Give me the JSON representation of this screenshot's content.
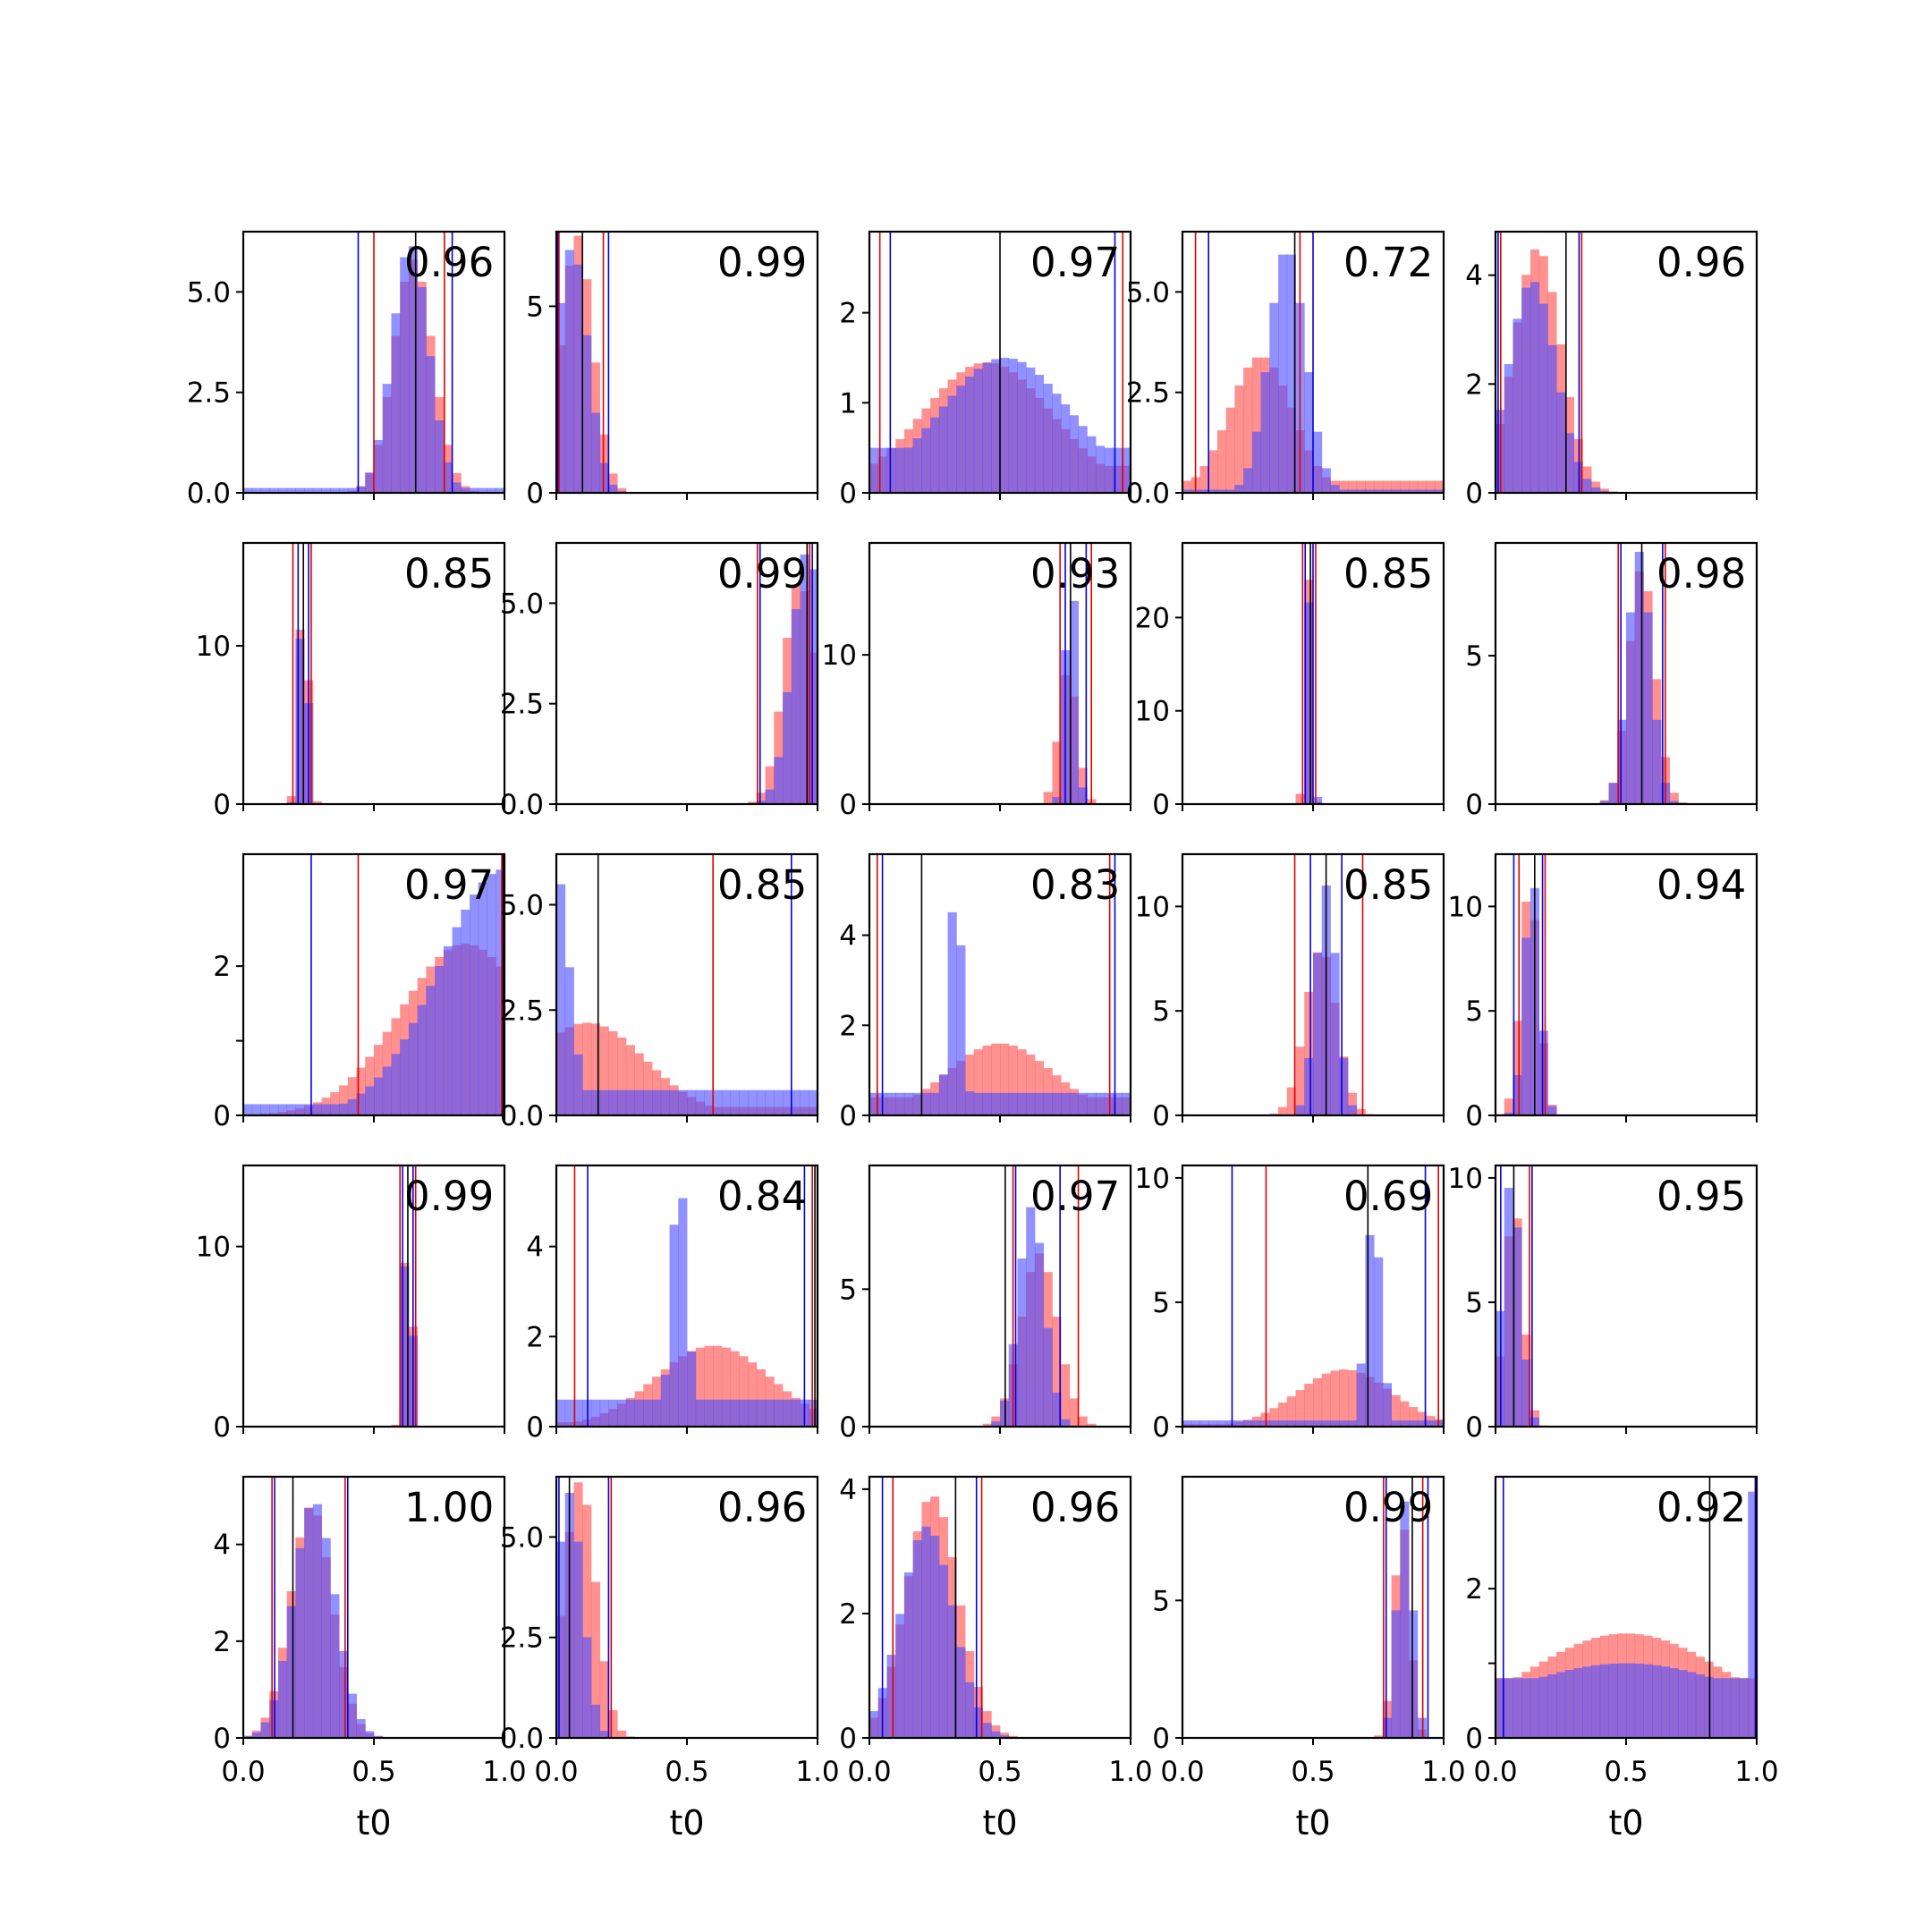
{
  "figure": {
    "grid_rows": 5,
    "grid_cols": 5,
    "xlabel": "t0",
    "colors": {
      "red": "#ff4d4d",
      "blue": "#4d4dff",
      "overlap": "#7f3fbf",
      "axis": "#000000"
    }
  },
  "chart_data": [
    {
      "type": "bar",
      "title": "0.96",
      "xlim": [
        0,
        1
      ],
      "ylim": [
        0,
        6.5
      ],
      "yticks": [
        0,
        2.5,
        5
      ],
      "ytick_labels": [
        "0.0",
        "2.5",
        "5.0"
      ],
      "xticks": [
        0,
        0.5,
        1
      ],
      "xtick_labels": [],
      "xlabel": "",
      "red": {
        "mean": 0.65,
        "sd": 0.075,
        "peak": 5.8
      },
      "blue": {
        "mean": 0.64,
        "sd": 0.07,
        "peak": 6.2,
        "floor": 0.12
      },
      "vlines": {
        "red": [
          0.5,
          0.77
        ],
        "blue": [
          0.44,
          0.8
        ],
        "black": [
          0.66
        ]
      }
    },
    {
      "type": "bar",
      "title": "0.99",
      "xlim": [
        0,
        1
      ],
      "ylim": [
        0,
        7
      ],
      "yticks": [
        0,
        5
      ],
      "ytick_labels": [
        "0",
        "5"
      ],
      "xticks": [
        0,
        0.5,
        1
      ],
      "xtick_labels": [],
      "xlabel": "",
      "red": {
        "mean": 0.08,
        "sd": 0.06,
        "peak": 6.9
      },
      "blue": {
        "mean": 0.06,
        "sd": 0.06,
        "peak": 6.6
      },
      "vlines": {
        "red": [
          0.01,
          0.18
        ],
        "blue": [
          0.005,
          0.2
        ],
        "black": [
          0.1
        ]
      }
    },
    {
      "type": "bar",
      "title": "0.97",
      "xlim": [
        0,
        1
      ],
      "ylim": [
        0,
        2.9
      ],
      "yticks": [
        0,
        1,
        2
      ],
      "ytick_labels": [
        "0",
        "1",
        "2"
      ],
      "xticks": [
        0,
        0.5,
        1
      ],
      "xtick_labels": [],
      "xlabel": "",
      "red": {
        "mean": 0.45,
        "sd": 0.25,
        "peak": 1.45,
        "floor": 0.3
      },
      "blue": {
        "mean": 0.52,
        "sd": 0.25,
        "peak": 1.5,
        "floor": 0.5
      },
      "vlines": {
        "red": [
          0.04,
          0.97
        ],
        "blue": [
          0.08,
          0.94
        ],
        "black": [
          0.5
        ]
      }
    },
    {
      "type": "bar",
      "title": "0.72",
      "xlim": [
        0,
        1
      ],
      "ylim": [
        0,
        6.5
      ],
      "yticks": [
        0,
        2.5,
        5
      ],
      "ytick_labels": [
        "0.0",
        "2.5",
        "5.0"
      ],
      "xticks": [
        0,
        0.5,
        1
      ],
      "xtick_labels": [],
      "xlabel": "",
      "red": {
        "mean": 0.3,
        "sd": 0.12,
        "peak": 3.4,
        "floor": 0.3
      },
      "blue": {
        "mean": 0.4,
        "sd": 0.07,
        "peak": 6.1,
        "floor": 0.08
      },
      "vlines": {
        "red": [
          0.05,
          0.45
        ],
        "blue": [
          0.1,
          0.5
        ],
        "black": [
          0.43
        ]
      }
    },
    {
      "type": "bar",
      "title": "0.96",
      "xlim": [
        0,
        1
      ],
      "ylim": [
        0,
        4.8
      ],
      "yticks": [
        0,
        2,
        4
      ],
      "ytick_labels": [
        "0",
        "2",
        "4"
      ],
      "xticks": [
        0,
        0.5,
        1
      ],
      "xtick_labels": [],
      "xlabel": "",
      "red": {
        "mean": 0.16,
        "sd": 0.09,
        "peak": 4.5
      },
      "blue": {
        "mean": 0.14,
        "sd": 0.09,
        "peak": 3.9
      },
      "vlines": {
        "red": [
          0.02,
          0.33
        ],
        "blue": [
          0.01,
          0.32
        ],
        "black": [
          0.27
        ]
      }
    },
    {
      "type": "bar",
      "title": "0.85",
      "xlim": [
        0,
        1
      ],
      "ylim": [
        0,
        16.5
      ],
      "yticks": [
        0,
        10
      ],
      "ytick_labels": [
        "0",
        "10"
      ],
      "xticks": [
        0,
        0.5,
        1
      ],
      "xtick_labels": [],
      "xlabel": "",
      "red": {
        "mean": 0.23,
        "sd": 0.018,
        "peak": 14.5
      },
      "blue": {
        "mean": 0.23,
        "sd": 0.015,
        "peak": 15.5
      },
      "vlines": {
        "red": [
          0.19,
          0.26
        ],
        "blue": [
          0.21,
          0.25
        ],
        "black": [
          0.23
        ]
      }
    },
    {
      "type": "bar",
      "title": "0.99",
      "xlim": [
        0,
        1
      ],
      "ylim": [
        0,
        6.5
      ],
      "yticks": [
        0,
        2.5,
        5
      ],
      "ytick_labels": [
        "0.0",
        "2.5",
        "5.0"
      ],
      "xticks": [
        0,
        0.5,
        1
      ],
      "xtick_labels": [],
      "xlabel": "",
      "red": {
        "mean": 0.93,
        "sd": 0.06,
        "peak": 5.6,
        "cut": 1
      },
      "blue": {
        "mean": 0.96,
        "sd": 0.06,
        "peak": 6.3,
        "cut": 1
      },
      "vlines": {
        "red": [
          0.77,
          0.97
        ],
        "blue": [
          0.78,
          0.98
        ],
        "black": [
          0.96
        ]
      }
    },
    {
      "type": "bar",
      "title": "0.93",
      "xlim": [
        0,
        1
      ],
      "ylim": [
        0,
        17.5
      ],
      "yticks": [
        0,
        10
      ],
      "ytick_labels": [
        "0",
        "10"
      ],
      "xticks": [
        0,
        0.5,
        1
      ],
      "xtick_labels": [],
      "xlabel": "",
      "red": {
        "mean": 0.76,
        "sd": 0.035,
        "peak": 9
      },
      "blue": {
        "mean": 0.77,
        "sd": 0.02,
        "peak": 17
      },
      "vlines": {
        "red": [
          0.73,
          0.85
        ],
        "blue": [
          0.75,
          0.83
        ],
        "black": [
          0.77
        ]
      }
    },
    {
      "type": "bar",
      "title": "0.85",
      "xlim": [
        0,
        1
      ],
      "ylim": [
        0,
        28
      ],
      "yticks": [
        0,
        10,
        20
      ],
      "ytick_labels": [
        "0",
        "10",
        "20"
      ],
      "xticks": [
        0,
        0.5,
        1
      ],
      "xtick_labels": [],
      "xlabel": "",
      "red": {
        "mean": 0.48,
        "sd": 0.012,
        "peak": 25
      },
      "blue": {
        "mean": 0.49,
        "sd": 0.01,
        "peak": 27
      },
      "vlines": {
        "red": [
          0.46,
          0.51
        ],
        "blue": [
          0.47,
          0.5
        ],
        "black": [
          0.49
        ]
      }
    },
    {
      "type": "bar",
      "title": "0.98",
      "xlim": [
        0,
        1
      ],
      "ylim": [
        0,
        8.8
      ],
      "yticks": [
        0,
        5
      ],
      "ytick_labels": [
        "0",
        "5"
      ],
      "xticks": [
        0,
        0.5,
        1
      ],
      "xtick_labels": [],
      "xlabel": "",
      "red": {
        "mean": 0.56,
        "sd": 0.05,
        "peak": 8
      },
      "blue": {
        "mean": 0.55,
        "sd": 0.045,
        "peak": 8.5
      },
      "vlines": {
        "red": [
          0.47,
          0.65
        ],
        "blue": [
          0.48,
          0.64
        ],
        "black": [
          0.56
        ]
      }
    },
    {
      "type": "bar",
      "title": "0.97",
      "xlim": [
        0,
        1
      ],
      "ylim": [
        0,
        3.5
      ],
      "yticks": [
        0,
        1,
        2
      ],
      "ytick_labels": [
        "0",
        "",
        "2"
      ],
      "xticks": [
        0,
        0.5,
        1
      ],
      "xtick_labels": [],
      "xlabel": "",
      "red": {
        "mean": 0.85,
        "sd": 0.25,
        "peak": 2.3,
        "cut": 1
      },
      "blue": {
        "mean": 1.0,
        "sd": 0.25,
        "peak": 3.3,
        "floor": 0.15,
        "cut": 1
      },
      "vlines": {
        "red": [
          0.44,
          0.99
        ],
        "blue": [
          0.26,
          0.995
        ],
        "black": [
          0.995
        ]
      }
    },
    {
      "type": "bar",
      "title": "0.85",
      "xlim": [
        0,
        1
      ],
      "ylim": [
        0,
        6.2
      ],
      "yticks": [
        0,
        2.5,
        5
      ],
      "ytick_labels": [
        "0.0",
        "2.5",
        "5.0"
      ],
      "xticks": [
        0,
        0.5,
        1
      ],
      "xtick_labels": [],
      "xlabel": "",
      "red": {
        "mean": 0.12,
        "sd": 0.22,
        "peak": 2.2,
        "floor": 0.2
      },
      "blue": {
        "mean": 0.0,
        "sd": 0.05,
        "peak": 5.8,
        "floor": 0.6
      },
      "vlines": {
        "red": [
          0.6
        ],
        "blue": [
          0.9
        ],
        "black": [
          0.16
        ]
      }
    },
    {
      "type": "bar",
      "title": "0.83",
      "xlim": [
        0,
        1
      ],
      "ylim": [
        0,
        5.8
      ],
      "yticks": [
        0,
        2,
        4
      ],
      "ytick_labels": [
        "0",
        "2",
        "4"
      ],
      "xticks": [
        0,
        0.5,
        1
      ],
      "xtick_labels": [],
      "xlabel": "",
      "red": {
        "mean": 0.5,
        "sd": 0.2,
        "peak": 1.6,
        "floor": 0.4
      },
      "blue": {
        "mean": 0.33,
        "sd": 0.025,
        "peak": 5.2,
        "floor": 0.5
      },
      "vlines": {
        "red": [
          0.03,
          0.92
        ],
        "blue": [
          0.05,
          0.94
        ],
        "black": [
          0.2
        ]
      }
    },
    {
      "type": "bar",
      "title": "0.85",
      "xlim": [
        0,
        1
      ],
      "ylim": [
        0,
        12.5
      ],
      "yticks": [
        0,
        5,
        10
      ],
      "ytick_labels": [
        "0",
        "5",
        "10"
      ],
      "xticks": [
        0,
        0.5,
        1
      ],
      "xtick_labels": [],
      "xlabel": "",
      "red": {
        "mean": 0.53,
        "sd": 0.06,
        "peak": 8
      },
      "blue": {
        "mean": 0.55,
        "sd": 0.04,
        "peak": 11
      },
      "vlines": {
        "red": [
          0.43,
          0.69
        ],
        "blue": [
          0.49,
          0.61
        ],
        "black": [
          0.55
        ]
      }
    },
    {
      "type": "bar",
      "title": "0.94",
      "xlim": [
        0,
        1
      ],
      "ylim": [
        0,
        12.5
      ],
      "yticks": [
        0,
        5,
        10
      ],
      "ytick_labels": [
        "0",
        "5",
        "10"
      ],
      "xticks": [
        0,
        0.5,
        1
      ],
      "xtick_labels": [],
      "xlabel": "",
      "red": {
        "mean": 0.13,
        "sd": 0.035,
        "peak": 11
      },
      "blue": {
        "mean": 0.14,
        "sd": 0.03,
        "peak": 11.5
      },
      "vlines": {
        "red": [
          0.09,
          0.19
        ],
        "blue": [
          0.07,
          0.18
        ],
        "black": [
          0.15
        ]
      }
    },
    {
      "type": "bar",
      "title": "0.99",
      "xlim": [
        0,
        1
      ],
      "ylim": [
        0,
        14.5
      ],
      "yticks": [
        0,
        10
      ],
      "ytick_labels": [
        "0",
        "10"
      ],
      "xticks": [
        0,
        0.5,
        1
      ],
      "xtick_labels": [],
      "xlabel": "",
      "red": {
        "mean": 0.63,
        "sd": 0.015,
        "peak": 13.5
      },
      "blue": {
        "mean": 0.63,
        "sd": 0.014,
        "peak": 14
      },
      "vlines": {
        "red": [
          0.6,
          0.66
        ],
        "blue": [
          0.61,
          0.65
        ],
        "black": [
          0.63
        ]
      }
    },
    {
      "type": "bar",
      "title": "0.84",
      "xlim": [
        0,
        1
      ],
      "ylim": [
        0,
        5.8
      ],
      "yticks": [
        0,
        2,
        4
      ],
      "ytick_labels": [
        "0",
        "2",
        "4"
      ],
      "xticks": [
        0,
        0.5,
        1
      ],
      "xtick_labels": [],
      "xlabel": "",
      "red": {
        "mean": 0.6,
        "sd": 0.22,
        "peak": 1.8,
        "floor": 0.1
      },
      "blue": {
        "mean": 0.47,
        "sd": 0.03,
        "peak": 5.6,
        "floor": 0.6
      },
      "vlines": {
        "red": [
          0.07,
          0.98
        ],
        "blue": [
          0.12,
          0.95
        ],
        "black": [
          0.99
        ]
      }
    },
    {
      "type": "bar",
      "title": "0.97",
      "xlim": [
        0,
        1
      ],
      "ylim": [
        0,
        9.5
      ],
      "yticks": [
        0,
        5
      ],
      "ytick_labels": [
        "0",
        "5"
      ],
      "xticks": [
        0,
        0.5,
        1
      ],
      "xtick_labels": [],
      "xlabel": "",
      "red": {
        "mean": 0.65,
        "sd": 0.07,
        "peak": 6.3
      },
      "blue": {
        "mean": 0.62,
        "sd": 0.05,
        "peak": 8
      },
      "vlines": {
        "red": [
          0.55,
          0.8
        ],
        "blue": [
          0.56,
          0.73
        ],
        "black": [
          0.52
        ]
      }
    },
    {
      "type": "bar",
      "title": "0.69",
      "xlim": [
        0,
        1
      ],
      "ylim": [
        0,
        10.5
      ],
      "yticks": [
        0,
        5,
        10
      ],
      "ytick_labels": [
        "0",
        "5",
        "10"
      ],
      "xticks": [
        0,
        0.5,
        1
      ],
      "xtick_labels": [],
      "xlabel": "",
      "red": {
        "mean": 0.62,
        "sd": 0.18,
        "peak": 2.3,
        "floor": 0.1
      },
      "blue": {
        "mean": 0.73,
        "sd": 0.03,
        "peak": 8.5,
        "floor": 0.25
      },
      "vlines": {
        "red": [
          0.32,
          0.98
        ],
        "blue": [
          0.19,
          0.93
        ],
        "black": [
          0.71
        ]
      }
    },
    {
      "type": "bar",
      "title": "0.95",
      "xlim": [
        0,
        1
      ],
      "ylim": [
        0,
        10.5
      ],
      "yticks": [
        0,
        5,
        10
      ],
      "ytick_labels": [
        "0",
        "5",
        "10"
      ],
      "xticks": [
        0,
        0.5,
        1
      ],
      "xtick_labels": [],
      "xlabel": "",
      "red": {
        "mean": 0.07,
        "sd": 0.035,
        "peak": 9
      },
      "blue": {
        "mean": 0.06,
        "sd": 0.035,
        "peak": 10
      },
      "vlines": {
        "red": [
          0.13
        ],
        "blue": [
          0.02,
          0.14
        ],
        "black": [
          0.07
        ]
      }
    },
    {
      "type": "bar",
      "title": "1.00",
      "xlim": [
        0,
        1
      ],
      "ylim": [
        0,
        5.4
      ],
      "yticks": [
        0,
        2,
        4
      ],
      "ytick_labels": [
        "0",
        "2",
        "4"
      ],
      "xticks": [
        0,
        0.5,
        1
      ],
      "xtick_labels": [
        "0.0",
        "0.5",
        "1.0"
      ],
      "xlabel": "t0",
      "red": {
        "mean": 0.26,
        "sd": 0.08,
        "peak": 4.8
      },
      "blue": {
        "mean": 0.27,
        "sd": 0.08,
        "peak": 4.9
      },
      "vlines": {
        "red": [
          0.11,
          0.39
        ],
        "blue": [
          0.12,
          0.4
        ],
        "black": [
          0.19
        ]
      }
    },
    {
      "type": "bar",
      "title": "0.96",
      "xlim": [
        0,
        1
      ],
      "ylim": [
        0,
        6.5
      ],
      "yticks": [
        0,
        2.5,
        5
      ],
      "ytick_labels": [
        "0.0",
        "2.5",
        "5.0"
      ],
      "xticks": [
        0,
        0.5,
        1
      ],
      "xtick_labels": [
        "0.0",
        "0.5",
        "1.0"
      ],
      "xlabel": "t0",
      "red": {
        "mean": 0.09,
        "sd": 0.06,
        "peak": 6.4
      },
      "blue": {
        "mean": 0.05,
        "sd": 0.05,
        "peak": 6.1
      },
      "vlines": {
        "red": [
          0.21
        ],
        "blue": [
          0.01,
          0.2
        ],
        "black": [
          0.05
        ]
      }
    },
    {
      "type": "bar",
      "title": "0.96",
      "xlim": [
        0,
        1
      ],
      "ylim": [
        0,
        4.2
      ],
      "yticks": [
        0,
        2,
        4
      ],
      "ytick_labels": [
        "0",
        "2",
        "4"
      ],
      "xticks": [
        0,
        0.5,
        1
      ],
      "xtick_labels": [
        "0.0",
        "0.5",
        "1.0"
      ],
      "xlabel": "t0",
      "red": {
        "mean": 0.24,
        "sd": 0.1,
        "peak": 3.9
      },
      "blue": {
        "mean": 0.22,
        "sd": 0.1,
        "peak": 3.4
      },
      "vlines": {
        "red": [
          0.09,
          0.43
        ],
        "blue": [
          0.05,
          0.41
        ],
        "black": [
          0.33
        ]
      }
    },
    {
      "type": "bar",
      "title": "0.99",
      "xlim": [
        0,
        1
      ],
      "ylim": [
        0,
        9.5
      ],
      "yticks": [
        0,
        5
      ],
      "ytick_labels": [
        "0",
        "5"
      ],
      "xticks": [
        0,
        0.5,
        1
      ],
      "xtick_labels": [
        "0.0",
        "0.5",
        "1.0"
      ],
      "xlabel": "t0",
      "red": {
        "mean": 0.84,
        "sd": 0.03,
        "peak": 8
      },
      "blue": {
        "mean": 0.85,
        "sd": 0.03,
        "peak": 8.6
      },
      "vlines": {
        "red": [
          0.77,
          0.92
        ],
        "blue": [
          0.78,
          0.94
        ],
        "black": [
          0.88
        ]
      }
    },
    {
      "type": "bar",
      "title": "0.92",
      "xlim": [
        0,
        1
      ],
      "ylim": [
        0,
        3.5
      ],
      "yticks": [
        0,
        1,
        2
      ],
      "ytick_labels": [
        "0",
        "",
        "2"
      ],
      "xticks": [
        0,
        0.5,
        1
      ],
      "xtick_labels": [
        "0.0",
        "0.5",
        "1.0"
      ],
      "xlabel": "t0",
      "red": {
        "mean": 0.5,
        "sd": 0.4,
        "peak": 1.4,
        "floor": 0.8
      },
      "blue": {
        "mean": 0.5,
        "sd": 0.5,
        "peak": 1.0,
        "floor": 0.8,
        "edge": 3.3
      },
      "vlines": {
        "red": [
          0.995
        ],
        "blue": [
          0.03,
          0.995
        ],
        "black": [
          0.82
        ]
      }
    }
  ]
}
